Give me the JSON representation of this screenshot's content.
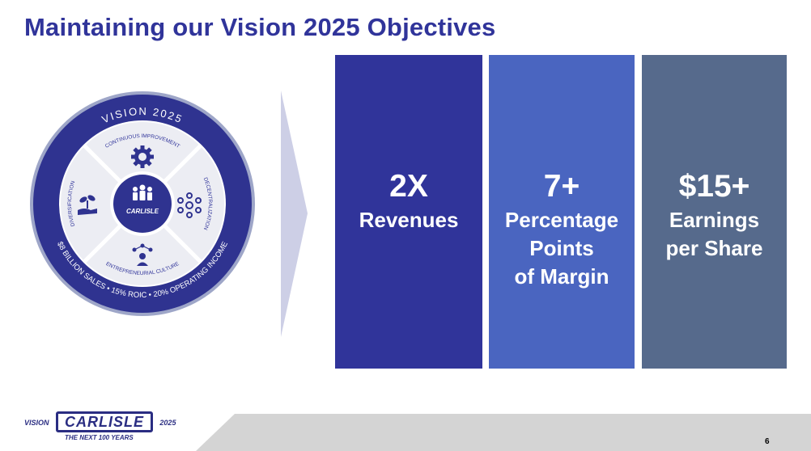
{
  "title": "Maintaining our Vision 2025 Objectives",
  "wheel": {
    "outer_top": "VISION 2025",
    "outer_bottom": "$8 BILLION SALES • 15% ROIC • 20% OPERATING INCOME",
    "segments": {
      "top": "CONTINUOUS IMPROVEMENT",
      "right": "DECENTRALIZATION",
      "bottom": "ENTREPRENEURIAL CULTURE",
      "left": "DIVERSIFICATION"
    },
    "center_label": "CARLISLE"
  },
  "objectives": [
    {
      "value": "2X",
      "label": "Revenues",
      "color": "#30349a"
    },
    {
      "value": "7+",
      "label": "Percentage\nPoints\nof Margin",
      "color": "#4a65c0"
    },
    {
      "value": "$15+",
      "label": "Earnings\nper Share",
      "color": "#566a8c"
    }
  ],
  "footer": {
    "logo_left": "VISION",
    "logo_main": "CARLISLE",
    "logo_right": "2025",
    "tagline": "THE NEXT 100 YEARS",
    "page_number": "6"
  }
}
